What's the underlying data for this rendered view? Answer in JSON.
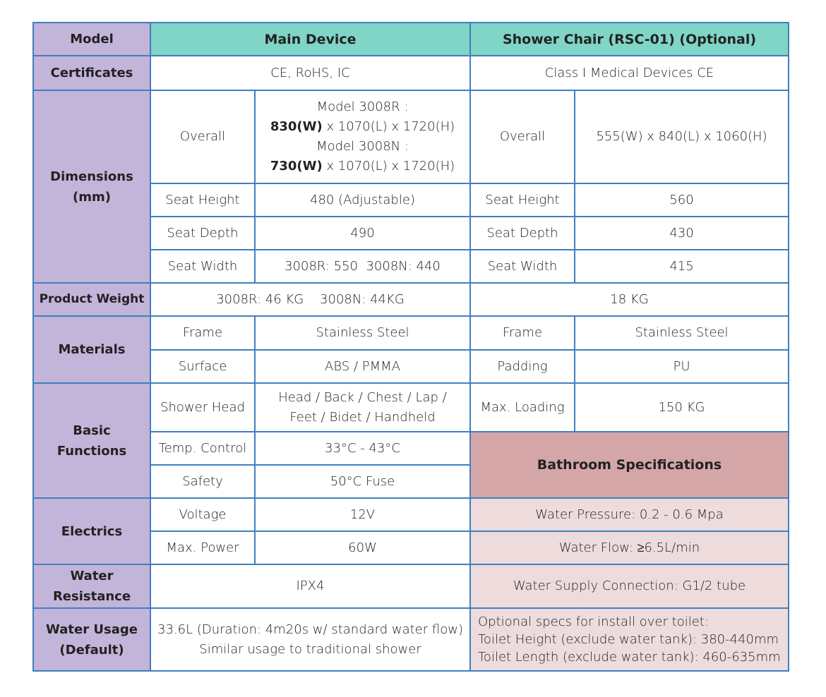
{
  "colors": {
    "label_bg": "#c3b4d9",
    "header_bg": "#80d5c6",
    "bathroom_header_bg": "#d4a6a8",
    "bathroom_bg": "#eedcdc",
    "border": "#3f7fbf"
  },
  "header": {
    "model": "Model",
    "main": "Main Device",
    "chair": "Shower Chair (RSC-01) (Optional)"
  },
  "certificates": {
    "label": "Certificates",
    "main": "CE, RoHS, IC",
    "chair": "Class I Medical Devices CE"
  },
  "dimensions": {
    "label": "Dimensions (mm)",
    "overall": {
      "label": "Overall",
      "r_model": "Model 3008R :",
      "r_w": "830(W)",
      "r_rest": " x 1070(L) x 1720(H)",
      "n_model": "Model 3008N :",
      "n_w": "730(W)",
      "n_rest": " x 1070(L) x 1720(H)",
      "chair_label": "Overall",
      "chair": "555(W) x 840(L) x 1060(H)"
    },
    "seat_height": {
      "label": "Seat Height",
      "main": "480 (Adjustable)",
      "chair_label": "Seat Height",
      "chair": "560"
    },
    "seat_depth": {
      "label": "Seat Depth",
      "main": "490",
      "chair_label": "Seat Depth",
      "chair": "430"
    },
    "seat_width": {
      "label": "Seat Width",
      "main": "3008R: 550  3008N: 440",
      "chair_label": "Seat Width",
      "chair": "415"
    }
  },
  "weight": {
    "label": "Product Weight",
    "main": "3008R: 46 KG    3008N: 44KG",
    "chair": "18 KG"
  },
  "materials": {
    "label": "Materials",
    "frame_label": "Frame",
    "frame": "Stainless Steel",
    "chair_frame_label": "Frame",
    "chair_frame": "Stainless Steel",
    "surface_label": "Surface",
    "surface": "ABS / PMMA",
    "padding_label": "Padding",
    "padding": "PU"
  },
  "functions": {
    "label": "Basic Functions",
    "shower_label": "Shower Head",
    "shower_1": "Head / Back / Chest / Lap /",
    "shower_2": "Feet / Bidet / Handheld",
    "loading_label": "Max. Loading",
    "loading": "150 KG",
    "temp_label": "Temp. Control",
    "temp": "33°C - 43°C",
    "safety_label": "Safety",
    "safety": "50°C Fuse"
  },
  "bathroom": {
    "title": "Bathroom Specifications",
    "pressure": "Water Pressure: 0.2 - 0.6 Mpa",
    "flow": "Water Flow: ≥6.5L/min",
    "supply": "Water Supply Connection: G1/2 tube",
    "optional_1": "Optional specs for install over toilet:",
    "optional_2": "Toilet Height (exclude water tank): 380-440mm",
    "optional_3": "Toilet Length (exclude water tank): 460-635mm"
  },
  "electrics": {
    "label": "Electrics",
    "voltage_label": "Voltage",
    "voltage": "12V",
    "power_label": "Max. Power",
    "power": "60W"
  },
  "water_resistance": {
    "label": "Water Resistance",
    "main": "IPX4"
  },
  "water_usage": {
    "label": "Water Usage (Default)",
    "line1": "33.6L (Duration: 4m20s w/ standard water flow)",
    "line2": "Similar usage to traditional shower"
  }
}
